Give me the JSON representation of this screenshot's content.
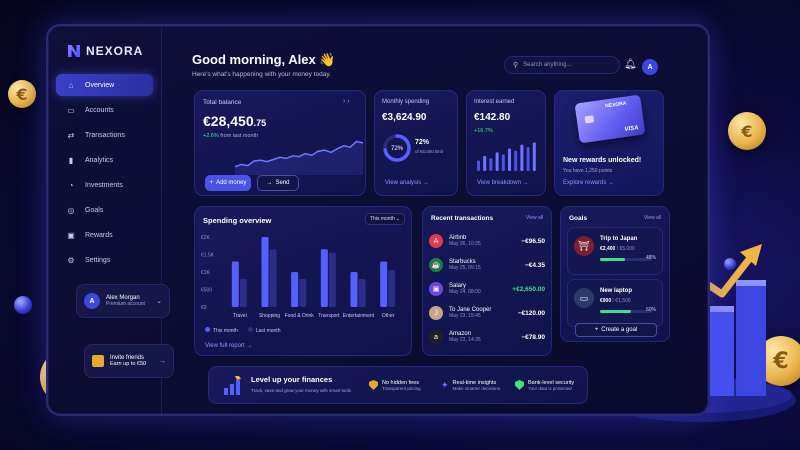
{
  "brand": {
    "name": "NEXORA"
  },
  "sidebar": {
    "items": [
      {
        "label": "Overview",
        "icon": "home-icon",
        "active": true
      },
      {
        "label": "Accounts",
        "icon": "wallet-icon"
      },
      {
        "label": "Transactions",
        "icon": "transfer-icon"
      },
      {
        "label": "Analytics",
        "icon": "analytics-icon"
      },
      {
        "label": "Investments",
        "icon": "investment-icon"
      },
      {
        "label": "Goals",
        "icon": "target-icon"
      },
      {
        "label": "Rewards",
        "icon": "gift-icon"
      },
      {
        "label": "Settings",
        "icon": "gear-icon"
      }
    ],
    "user": {
      "initial": "A",
      "name": "Alex Morgan",
      "plan": "Premium account"
    },
    "invite": {
      "title": "Invite friends",
      "subtitle": "Earn up to €50"
    }
  },
  "header": {
    "greeting": "Good morning, Alex 👋",
    "subtitle": "Here's what's happening with your money today.",
    "search_placeholder": "Search anything...",
    "avatar_initial": "A"
  },
  "total_balance": {
    "label": "Total balance",
    "amount_main": "€28,450",
    "amount_cents": ".75",
    "change": "+2.6%",
    "change_note": "from last month",
    "add_money": "Add money",
    "send": "Send",
    "sparkline": [
      0.12,
      0.18,
      0.15,
      0.28,
      0.3,
      0.26,
      0.32,
      0.38,
      0.35,
      0.42,
      0.4,
      0.48,
      0.44,
      0.55,
      0.58,
      0.52,
      0.62,
      0.7,
      0.66,
      0.82,
      0.78
    ]
  },
  "monthly_spending": {
    "label": "Monthly spending",
    "amount": "€3,624.90",
    "percent": 72,
    "percent_label": "72%",
    "percent_note": "of €5,000 limit",
    "link": "View analysis"
  },
  "interest": {
    "label": "Interest earned",
    "amount": "€142.80",
    "change": "+16.7%",
    "link": "View breakdown",
    "bars": [
      0.35,
      0.5,
      0.42,
      0.62,
      0.55,
      0.75,
      0.68,
      0.88,
      0.8,
      0.95
    ]
  },
  "rewards": {
    "card_brand": "NEXORA",
    "card_network": "VISA",
    "title": "New rewards unlocked!",
    "subtitle": "You have 1,250 points",
    "link": "Explore rewards"
  },
  "spending_overview": {
    "title": "Spending overview",
    "period": "This month",
    "link": "View full report",
    "legend_this": "This month",
    "legend_last": "Last month",
    "chart_data": {
      "type": "bar",
      "categories": [
        "Travel",
        "Shopping",
        "Food & Drink",
        "Transport",
        "Entertainment",
        "Other"
      ],
      "yticks": [
        "€2K",
        "€1.5K",
        "€1K",
        "€500",
        "€0"
      ],
      "ylim": [
        0,
        2000
      ],
      "series": [
        {
          "name": "This month",
          "values": [
            1300,
            2000,
            1000,
            1650,
            1000,
            1300
          ]
        },
        {
          "name": "Last month",
          "values": [
            800,
            1650,
            800,
            1550,
            800,
            1050
          ]
        }
      ]
    }
  },
  "transactions": {
    "title": "Recent transactions",
    "link": "View all",
    "items": [
      {
        "name": "Airbnb",
        "date": "May 26, 10:25",
        "amount": "−€96.50",
        "color": "#e23b4e",
        "glyph": "A",
        "positive": false
      },
      {
        "name": "Starbucks",
        "date": "May 25, 09:15",
        "amount": "−€4.35",
        "color": "#1f7a4a",
        "glyph": "☕",
        "positive": false
      },
      {
        "name": "Salary",
        "date": "May 24, 08:00",
        "amount": "+€2,650.00",
        "color": "#6b45e0",
        "glyph": "▣",
        "positive": true
      },
      {
        "name": "To Jane Cooper",
        "date": "May 23, 15:45",
        "amount": "−€120.00",
        "color": "#c7a387",
        "glyph": "J",
        "positive": false
      },
      {
        "name": "Amazon",
        "date": "May 23, 14:26",
        "amount": "−€78.90",
        "color": "#222",
        "glyph": "a",
        "positive": false
      }
    ]
  },
  "goals": {
    "title": "Goals",
    "link": "View all",
    "items": [
      {
        "name": "Trip to Japan",
        "saved": "€2,400",
        "target": "/ €5,000",
        "percent": 48,
        "percent_label": "48%"
      },
      {
        "name": "New laptop",
        "saved": "€900",
        "target": "/ €1,500",
        "percent": 60,
        "percent_label": "60%"
      }
    ],
    "create": "Create a goal"
  },
  "promo": {
    "title": "Level up your finances",
    "subtitle": "Track, save and grow your money with smart tools",
    "features": [
      {
        "title": "No hidden fees",
        "subtitle": "Transparent pricing",
        "color": "#e7a92b"
      },
      {
        "title": "Real-time insights",
        "subtitle": "Make smarter decisions",
        "color": "#8a6bff"
      },
      {
        "title": "Bank-level security",
        "subtitle": "Your data is protected",
        "color": "#3ee08a"
      }
    ]
  },
  "colors": {
    "accent": "#4a52e8",
    "positive": "#3ee08a",
    "bar_this": "#5560ff",
    "bar_last": "#2b2e86"
  }
}
